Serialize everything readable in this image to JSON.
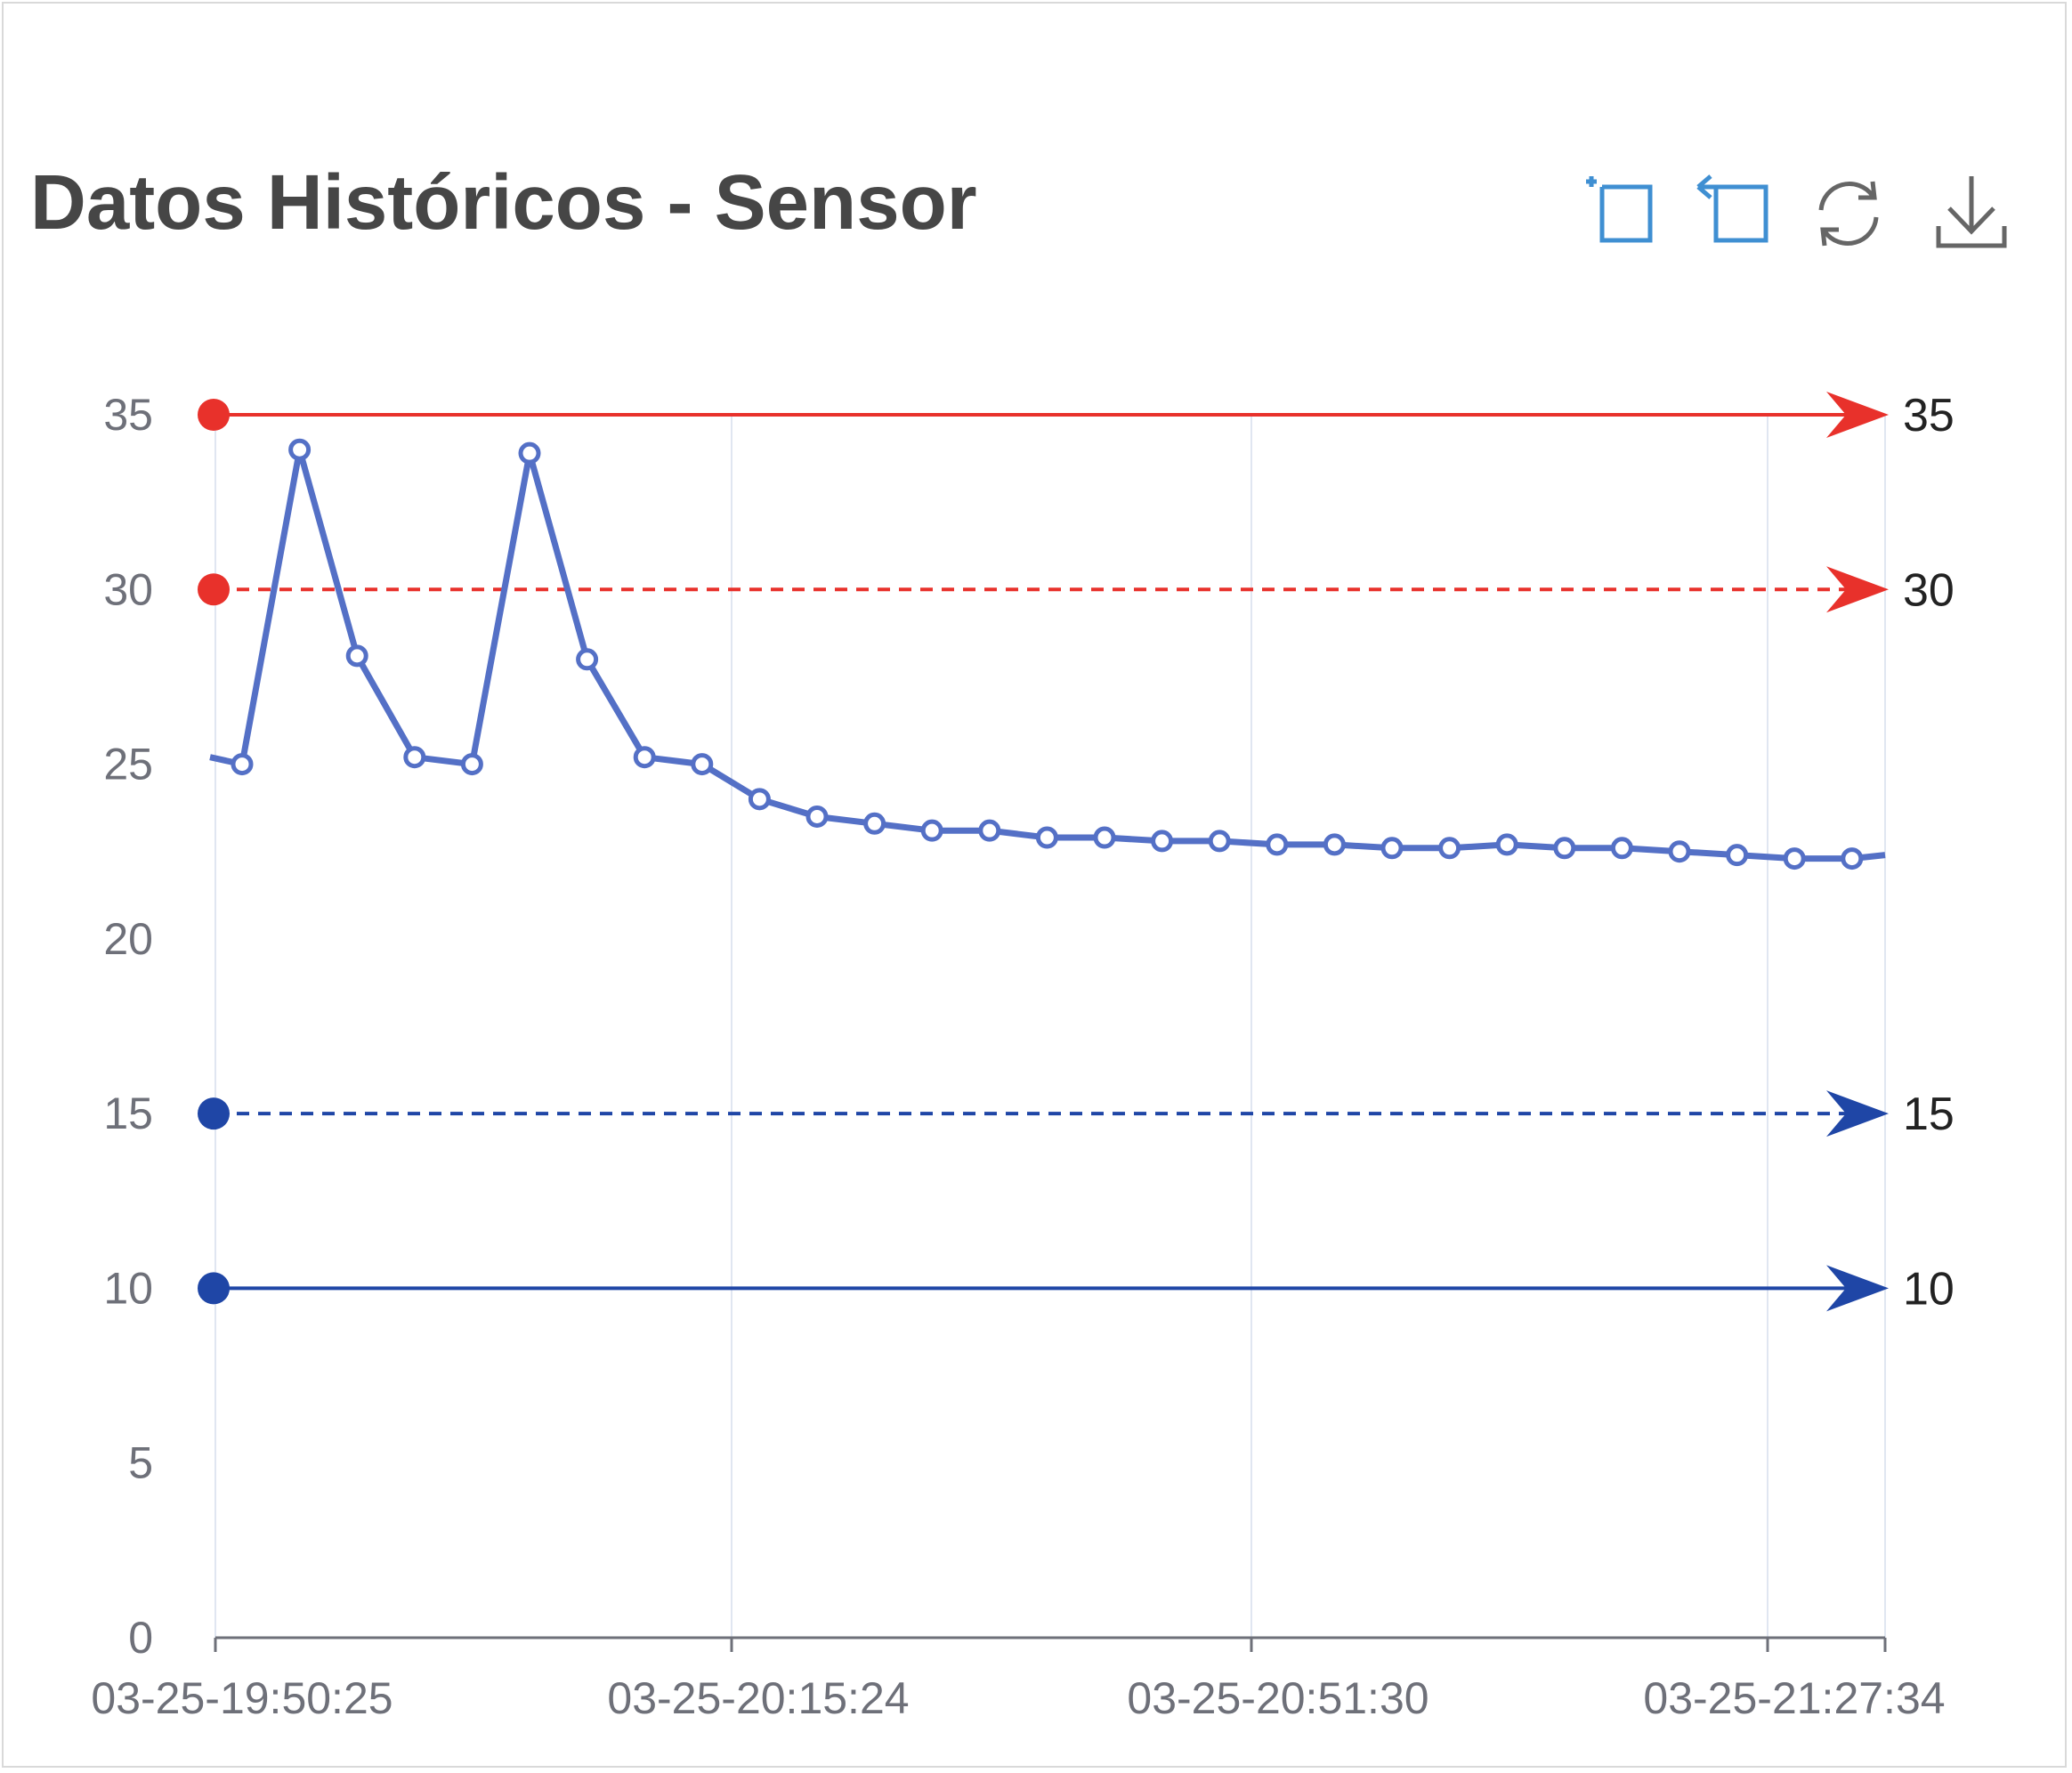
{
  "title": "Datos Históricos - Sensor",
  "toolbox": [
    {
      "name": "zoom-icon",
      "color": "#3f8fd2"
    },
    {
      "name": "zoom-reset-icon",
      "color": "#3f8fd2"
    },
    {
      "name": "restore-icon",
      "color": "#666666"
    },
    {
      "name": "download-icon",
      "color": "#666666"
    }
  ],
  "colors": {
    "series": "#5470c6",
    "upper_limit": "#e8312b",
    "lower_limit": "#1f46a6",
    "axis_text": "#6e7079",
    "grid": "#e0e6f1"
  },
  "chart_data": {
    "type": "line",
    "title": "Datos Históricos - Sensor",
    "ylim": [
      0,
      35
    ],
    "yticks": [
      "0",
      "5",
      "10",
      "15",
      "20",
      "25",
      "30",
      "35"
    ],
    "xtick_labels": [
      "03-25-19:50:25",
      "03-25-20:15:24",
      "03-25-20:51:30",
      "03-25-21:27:34"
    ],
    "series": [
      {
        "values": [
          25.0,
          34.0,
          28.1,
          25.2,
          25.0,
          33.9,
          28.0,
          25.2,
          25.0,
          24.0,
          23.5,
          23.3,
          23.1,
          23.1,
          22.9,
          22.9,
          22.8,
          22.8,
          22.7,
          22.7,
          22.6,
          22.6,
          22.7,
          22.6,
          22.6,
          22.5,
          22.4,
          22.3,
          22.3
        ]
      }
    ],
    "mark_lines": [
      {
        "value": 35,
        "label": "35",
        "style": "solid",
        "color": "#e8312b"
      },
      {
        "value": 30,
        "label": "30",
        "style": "dashed",
        "color": "#e8312b"
      },
      {
        "value": 15,
        "label": "15",
        "style": "dashed",
        "color": "#1f46a6"
      },
      {
        "value": 10,
        "label": "10",
        "style": "solid",
        "color": "#1f46a6"
      }
    ],
    "grid": true,
    "legend": "none"
  }
}
